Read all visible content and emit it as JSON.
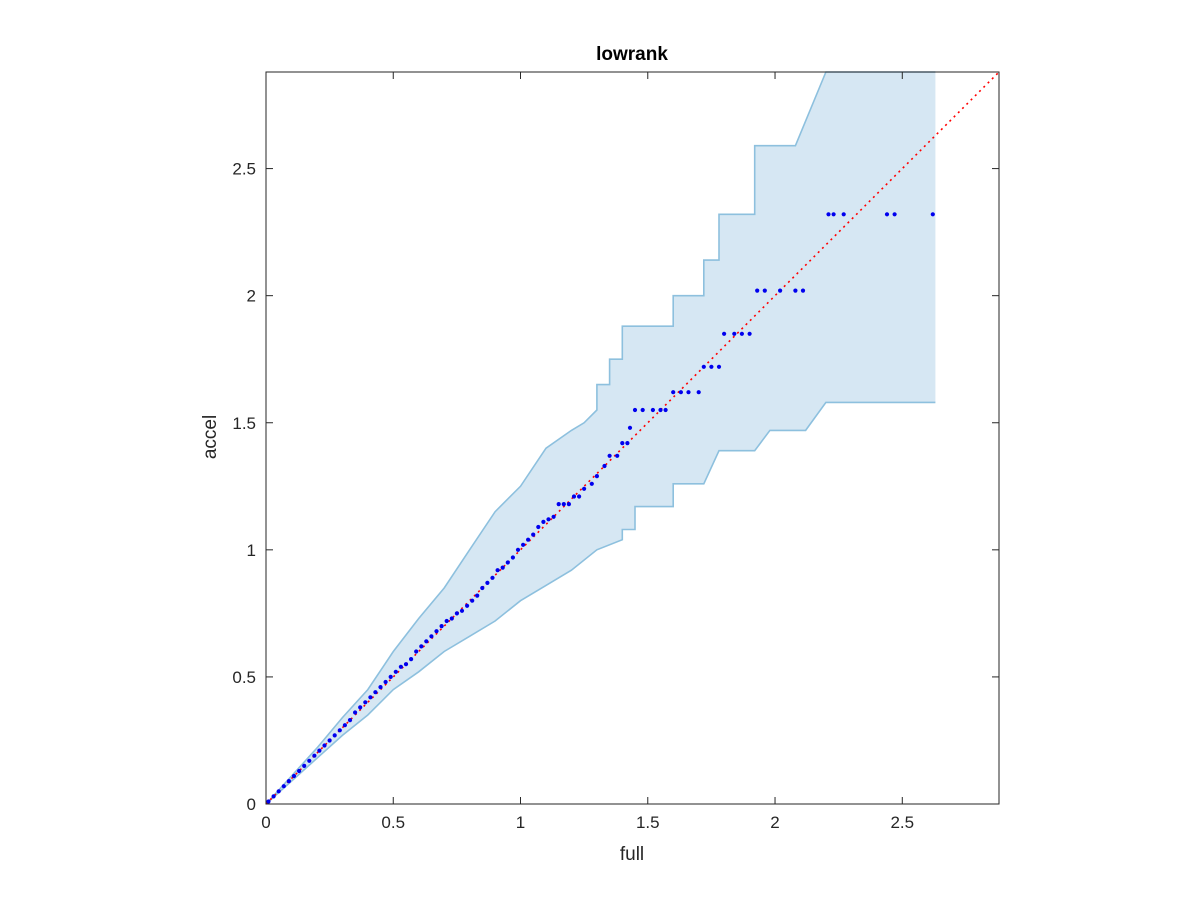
{
  "chart_data": {
    "type": "scatter",
    "title": "lowrank",
    "xlabel": "full",
    "ylabel": "accel",
    "xlim": [
      0,
      2.88
    ],
    "ylim": [
      0,
      2.88
    ],
    "xticks": [
      0,
      0.5,
      1,
      1.5,
      2,
      2.5
    ],
    "yticks": [
      0,
      0.5,
      1,
      1.5,
      2,
      2.5
    ],
    "xtick_labels": [
      "0",
      "0.5",
      "1",
      "1.5",
      "2",
      "2.5"
    ],
    "ytick_labels": [
      "0",
      "0.5",
      "1",
      "1.5",
      "2",
      "2.5"
    ],
    "grid": false,
    "colors": {
      "band_fill": "#d6e7f3",
      "band_edge": "#8dc0de",
      "points": "#0000ee",
      "reference": "#ff0000",
      "axes": "#262626"
    },
    "reference_line": {
      "x": [
        0,
        2.88
      ],
      "y": [
        0,
        2.88
      ],
      "style": "dotted"
    },
    "band": {
      "upper": [
        [
          0,
          0
        ],
        [
          0.1,
          0.11
        ],
        [
          0.2,
          0.22
        ],
        [
          0.3,
          0.34
        ],
        [
          0.4,
          0.45
        ],
        [
          0.5,
          0.6
        ],
        [
          0.6,
          0.73
        ],
        [
          0.7,
          0.85
        ],
        [
          0.8,
          1.0
        ],
        [
          0.9,
          1.15
        ],
        [
          1.0,
          1.25
        ],
        [
          1.1,
          1.4
        ],
        [
          1.2,
          1.47
        ],
        [
          1.25,
          1.5
        ],
        [
          1.3,
          1.55
        ],
        [
          1.3,
          1.65
        ],
        [
          1.35,
          1.65
        ],
        [
          1.35,
          1.75
        ],
        [
          1.4,
          1.75
        ],
        [
          1.4,
          1.88
        ],
        [
          1.6,
          1.88
        ],
        [
          1.6,
          2.0
        ],
        [
          1.72,
          2.0
        ],
        [
          1.72,
          2.14
        ],
        [
          1.78,
          2.14
        ],
        [
          1.78,
          2.32
        ],
        [
          1.92,
          2.32
        ],
        [
          1.92,
          2.59
        ],
        [
          2.08,
          2.59
        ],
        [
          2.2,
          2.88
        ],
        [
          2.63,
          2.88
        ]
      ],
      "lower": [
        [
          2.63,
          1.58
        ],
        [
          2.2,
          1.58
        ],
        [
          2.12,
          1.47
        ],
        [
          1.98,
          1.47
        ],
        [
          1.92,
          1.39
        ],
        [
          1.78,
          1.39
        ],
        [
          1.72,
          1.26
        ],
        [
          1.6,
          1.26
        ],
        [
          1.6,
          1.17
        ],
        [
          1.45,
          1.17
        ],
        [
          1.45,
          1.08
        ],
        [
          1.4,
          1.08
        ],
        [
          1.4,
          1.04
        ],
        [
          1.3,
          1.0
        ],
        [
          1.2,
          0.92
        ],
        [
          1.1,
          0.86
        ],
        [
          1.0,
          0.8
        ],
        [
          0.9,
          0.72
        ],
        [
          0.8,
          0.66
        ],
        [
          0.7,
          0.6
        ],
        [
          0.6,
          0.52
        ],
        [
          0.5,
          0.45
        ],
        [
          0.4,
          0.35
        ],
        [
          0.3,
          0.27
        ],
        [
          0.2,
          0.18
        ],
        [
          0.1,
          0.09
        ],
        [
          0,
          0
        ]
      ]
    },
    "points": [
      [
        0.01,
        0.01
      ],
      [
        0.03,
        0.03
      ],
      [
        0.05,
        0.05
      ],
      [
        0.07,
        0.07
      ],
      [
        0.09,
        0.09
      ],
      [
        0.11,
        0.11
      ],
      [
        0.13,
        0.13
      ],
      [
        0.15,
        0.15
      ],
      [
        0.17,
        0.17
      ],
      [
        0.19,
        0.19
      ],
      [
        0.21,
        0.21
      ],
      [
        0.23,
        0.23
      ],
      [
        0.25,
        0.25
      ],
      [
        0.27,
        0.27
      ],
      [
        0.29,
        0.29
      ],
      [
        0.31,
        0.31
      ],
      [
        0.33,
        0.33
      ],
      [
        0.35,
        0.36
      ],
      [
        0.37,
        0.38
      ],
      [
        0.39,
        0.4
      ],
      [
        0.41,
        0.42
      ],
      [
        0.43,
        0.44
      ],
      [
        0.45,
        0.46
      ],
      [
        0.47,
        0.48
      ],
      [
        0.49,
        0.5
      ],
      [
        0.51,
        0.52
      ],
      [
        0.53,
        0.54
      ],
      [
        0.55,
        0.55
      ],
      [
        0.57,
        0.57
      ],
      [
        0.59,
        0.6
      ],
      [
        0.61,
        0.62
      ],
      [
        0.63,
        0.64
      ],
      [
        0.65,
        0.66
      ],
      [
        0.67,
        0.68
      ],
      [
        0.69,
        0.7
      ],
      [
        0.71,
        0.72
      ],
      [
        0.73,
        0.73
      ],
      [
        0.75,
        0.75
      ],
      [
        0.77,
        0.76
      ],
      [
        0.79,
        0.78
      ],
      [
        0.81,
        0.8
      ],
      [
        0.83,
        0.82
      ],
      [
        0.85,
        0.85
      ],
      [
        0.87,
        0.87
      ],
      [
        0.89,
        0.89
      ],
      [
        0.91,
        0.92
      ],
      [
        0.93,
        0.93
      ],
      [
        0.95,
        0.95
      ],
      [
        0.97,
        0.97
      ],
      [
        0.99,
        1.0
      ],
      [
        1.01,
        1.02
      ],
      [
        1.03,
        1.04
      ],
      [
        1.05,
        1.06
      ],
      [
        1.07,
        1.09
      ],
      [
        1.09,
        1.11
      ],
      [
        1.11,
        1.12
      ],
      [
        1.13,
        1.13
      ],
      [
        1.15,
        1.18
      ],
      [
        1.17,
        1.18
      ],
      [
        1.19,
        1.18
      ],
      [
        1.21,
        1.21
      ],
      [
        1.23,
        1.21
      ],
      [
        1.25,
        1.24
      ],
      [
        1.28,
        1.26
      ],
      [
        1.3,
        1.29
      ],
      [
        1.33,
        1.33
      ],
      [
        1.35,
        1.37
      ],
      [
        1.38,
        1.37
      ],
      [
        1.4,
        1.42
      ],
      [
        1.42,
        1.42
      ],
      [
        1.43,
        1.48
      ],
      [
        1.45,
        1.55
      ],
      [
        1.48,
        1.55
      ],
      [
        1.52,
        1.55
      ],
      [
        1.55,
        1.55
      ],
      [
        1.57,
        1.55
      ],
      [
        1.6,
        1.62
      ],
      [
        1.63,
        1.62
      ],
      [
        1.66,
        1.62
      ],
      [
        1.7,
        1.62
      ],
      [
        1.72,
        1.72
      ],
      [
        1.75,
        1.72
      ],
      [
        1.78,
        1.72
      ],
      [
        1.8,
        1.85
      ],
      [
        1.84,
        1.85
      ],
      [
        1.87,
        1.85
      ],
      [
        1.9,
        1.85
      ],
      [
        1.93,
        2.02
      ],
      [
        1.96,
        2.02
      ],
      [
        2.02,
        2.02
      ],
      [
        2.08,
        2.02
      ],
      [
        2.11,
        2.02
      ],
      [
        2.21,
        2.32
      ],
      [
        2.23,
        2.32
      ],
      [
        2.27,
        2.32
      ],
      [
        2.44,
        2.32
      ],
      [
        2.47,
        2.32
      ],
      [
        2.62,
        2.32
      ]
    ]
  }
}
